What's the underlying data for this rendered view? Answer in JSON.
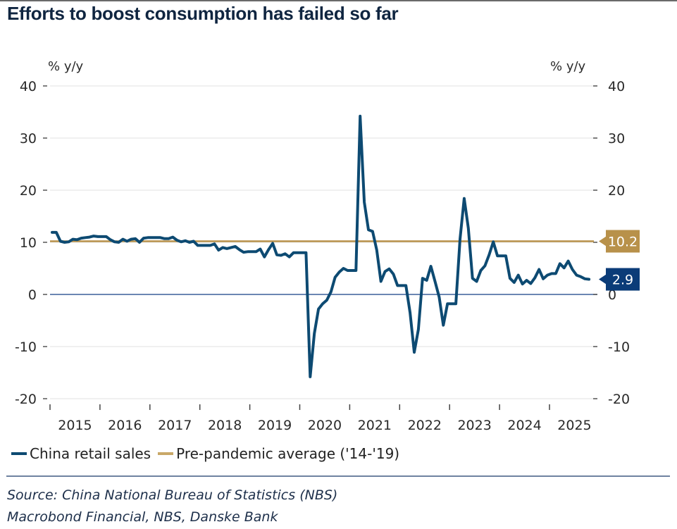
{
  "title": "Efforts to boost consumption has failed so far",
  "chart_data": {
    "type": "line",
    "title": "Efforts to boost consumption has failed so far",
    "ylabel_left": "% y/y",
    "ylabel_right": "% y/y",
    "xlabel": "",
    "ylim": [
      -20,
      40
    ],
    "yticks": [
      40,
      30,
      20,
      10,
      0,
      -10,
      -20
    ],
    "x_tick_labels": [
      "2015",
      "2016",
      "2017",
      "2018",
      "2019",
      "2020",
      "2021",
      "2022",
      "2023",
      "2024",
      "2025"
    ],
    "x_start_year": 2015,
    "grid": true,
    "legend_position": "bottom-left",
    "series": [
      {
        "name": "China retail sales",
        "color": "#0d4a72",
        "frequency": "monthly",
        "start": "2015-01",
        "end_label": "2.9",
        "values": [
          11.9,
          11.9,
          10.2,
          10.0,
          10.1,
          10.6,
          10.5,
          10.8,
          10.9,
          11.0,
          11.2,
          11.1,
          11.1,
          11.1,
          10.5,
          10.1,
          10.0,
          10.6,
          10.2,
          10.6,
          10.7,
          10.0,
          10.8,
          10.9,
          10.9,
          10.9,
          10.9,
          10.7,
          10.7,
          11.0,
          10.4,
          10.1,
          10.3,
          10.0,
          10.2,
          9.4,
          9.4,
          9.4,
          9.4,
          9.7,
          8.5,
          9.0,
          8.8,
          9.0,
          9.2,
          8.6,
          8.1,
          8.2,
          8.2,
          8.2,
          8.7,
          7.2,
          8.6,
          9.8,
          7.6,
          7.5,
          7.8,
          7.2,
          8.0,
          8.0,
          8.0,
          8.0,
          -15.8,
          -7.5,
          -2.8,
          -1.8,
          -1.1,
          0.5,
          3.3,
          4.3,
          5.0,
          4.6,
          4.6,
          4.6,
          34.2,
          17.7,
          12.4,
          12.1,
          8.5,
          2.5,
          4.4,
          4.9,
          3.9,
          1.7,
          1.7,
          1.7,
          -3.5,
          -11.1,
          -6.7,
          3.1,
          2.7,
          5.4,
          2.5,
          -0.5,
          -5.9,
          -1.8,
          -1.8,
          -1.8,
          10.6,
          18.4,
          12.7,
          3.1,
          2.5,
          4.6,
          5.5,
          7.6,
          10.1,
          7.4,
          7.4,
          7.4,
          3.1,
          2.3,
          3.7,
          2.0,
          2.7,
          2.1,
          3.2,
          4.8,
          3.0,
          3.7,
          4.0,
          4.0,
          5.9,
          5.1,
          6.4,
          4.8,
          3.7,
          3.4,
          3.0,
          2.9
        ]
      },
      {
        "name": "Pre-pandemic average ('14-'19)",
        "color": "#b8914a",
        "type": "hline",
        "value": 10.2,
        "end_label": "10.2"
      }
    ],
    "zero_line_color": "#3a5f9a"
  },
  "legend": [
    {
      "label": "China retail sales",
      "color": "#0d4a72"
    },
    {
      "label": "Pre-pandemic average ('14-'19)",
      "color": "#b8914a"
    }
  ],
  "source": {
    "line1": "Source: China National Bureau of Statistics (NBS)",
    "line2": "Macrobond Financial, NBS, Danske Bank"
  }
}
